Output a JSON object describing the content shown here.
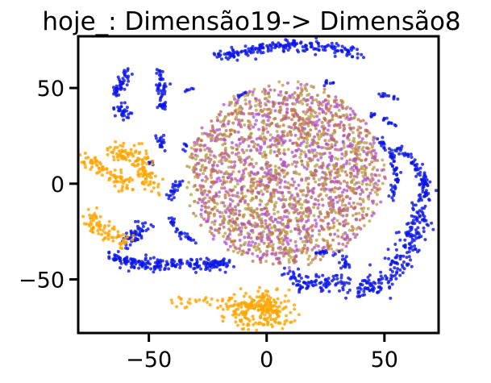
{
  "chart_data": {
    "type": "scatter",
    "title": "hoje_: Dimensão19-> Dimensão8",
    "xlabel": "",
    "ylabel": "",
    "xlim": [
      -80,
      73
    ],
    "ylim": [
      -78,
      77
    ],
    "grid": false,
    "legend": "none",
    "x_ticks": [
      -50,
      0,
      50
    ],
    "y_ticks": [
      -50,
      0,
      50
    ],
    "x_tick_labels": [
      "−50",
      "0",
      "50"
    ],
    "y_tick_labels": [
      "−50",
      "0",
      "50"
    ],
    "colors": {
      "blue": "#0a14e6",
      "orange": "#ffa500",
      "brown": "#c0704a",
      "olive": "#b8a040",
      "magenta": "#b050d0"
    },
    "series": [
      {
        "color": "blue",
        "note_shape": "arcs",
        "arcs": [
          {
            "points": [
              [
                -21,
                67
              ],
              [
                -5,
                70
              ],
              [
                10,
                73
              ],
              [
                25,
                71
              ],
              [
                40,
                68
              ]
            ],
            "spread": 1.6,
            "n": 190
          },
          {
            "points": [
              [
                -59,
                58
              ],
              [
                -62,
                53
              ],
              [
                -64,
                46
              ]
            ],
            "spread": 1.4,
            "n": 45
          },
          {
            "points": [
              [
                -62,
                40
              ],
              [
                -60,
                36
              ]
            ],
            "spread": 1.8,
            "n": 30
          },
          {
            "points": [
              [
                -46,
                59
              ],
              [
                -44,
                53
              ],
              [
                -45,
                45
              ],
              [
                -44,
                38
              ]
            ],
            "spread": 1.0,
            "n": 55
          },
          {
            "points": [
              [
                -45,
                25
              ],
              [
                -44,
                19
              ]
            ],
            "spread": 1.0,
            "n": 18
          },
          {
            "points": [
              [
                -49,
                13
              ],
              [
                -49,
                10
              ]
            ],
            "spread": 0.8,
            "n": 8
          },
          {
            "points": [
              [
                -35,
                20
              ],
              [
                -33,
                18
              ]
            ],
            "spread": 0.8,
            "n": 6
          },
          {
            "points": [
              [
                -52,
                -22
              ],
              [
                -56,
                -27
              ],
              [
                -60,
                -31
              ]
            ],
            "spread": 2.0,
            "n": 55
          },
          {
            "points": [
              [
                -66,
                -38
              ],
              [
                -55,
                -42
              ],
              [
                -40,
                -43
              ],
              [
                -30,
                -42
              ],
              [
                -15,
                -42
              ]
            ],
            "spread": 1.5,
            "n": 200
          },
          {
            "points": [
              [
                -42,
                -17
              ],
              [
                -38,
                -24
              ],
              [
                -31,
                -30
              ]
            ],
            "spread": 0.9,
            "n": 30
          },
          {
            "points": [
              [
                -37,
                2
              ],
              [
                -40,
                -5
              ],
              [
                -41,
                -8
              ]
            ],
            "spread": 0.9,
            "n": 25
          },
          {
            "points": [
              [
                55,
                19
              ],
              [
                62,
                12
              ],
              [
                67,
                2
              ],
              [
                66,
                -8
              ]
            ],
            "spread": 1.1,
            "n": 80
          },
          {
            "points": [
              [
                67,
                -8
              ],
              [
                64,
                -22
              ],
              [
                58,
                -40
              ],
              [
                48,
                -53
              ],
              [
                35,
                -55
              ]
            ],
            "spread": 3.0,
            "n": 220
          },
          {
            "points": [
              [
                32,
                -50
              ],
              [
                18,
                -53
              ],
              [
                10,
                -50
              ],
              [
                8,
                -46
              ]
            ],
            "spread": 2.3,
            "n": 90
          },
          {
            "points": [
              [
                21,
                -36
              ],
              [
                28,
                -35
              ],
              [
                33,
                -40
              ],
              [
                34,
                -44
              ]
            ],
            "spread": 0.8,
            "n": 30
          },
          {
            "points": [
              [
                48,
                23
              ],
              [
                52,
                17
              ],
              [
                55,
                8
              ],
              [
                55,
                0
              ],
              [
                53,
                -7
              ]
            ],
            "spread": 0.9,
            "n": 60
          },
          {
            "points": [
              [
                48,
                47
              ],
              [
                52,
                45
              ],
              [
                56,
                45
              ]
            ],
            "spread": 0.6,
            "n": 12
          },
          {
            "points": [
              [
                50,
                34
              ],
              [
                53,
                32
              ],
              [
                55,
                30
              ]
            ],
            "spread": 0.6,
            "n": 10
          },
          {
            "points": [
              [
                24,
                52
              ],
              [
                27,
                53
              ],
              [
                29,
                53
              ]
            ],
            "spread": 0.6,
            "n": 8
          },
          {
            "points": [
              [
                44,
                37
              ],
              [
                47,
                35
              ]
            ],
            "spread": 0.6,
            "n": 6
          },
          {
            "points": [
              [
                -12,
                45
              ],
              [
                -8,
                48
              ]
            ],
            "spread": 0.6,
            "n": 6
          },
          {
            "points": [
              [
                -35,
                48
              ],
              [
                -32,
                50
              ]
            ],
            "spread": 0.6,
            "n": 6
          }
        ]
      },
      {
        "color": "orange",
        "note_shape": "arcs",
        "arcs": [
          {
            "points": [
              [
                -65,
                17
              ],
              [
                -55,
                15
              ],
              [
                -52,
                8
              ],
              [
                -50,
                0
              ],
              [
                -47,
                -2
              ]
            ],
            "spread": 2.5,
            "n": 130
          },
          {
            "points": [
              [
                -77,
                13
              ],
              [
                -72,
                10
              ],
              [
                -66,
                5
              ],
              [
                -60,
                0
              ],
              [
                -57,
                -3
              ]
            ],
            "spread": 1.8,
            "n": 80
          },
          {
            "points": [
              [
                -76,
                -14
              ],
              [
                -72,
                -22
              ],
              [
                -65,
                -28
              ],
              [
                -58,
                -31
              ]
            ],
            "spread": 2.5,
            "n": 80
          },
          {
            "points": [
              [
                -38,
                -62
              ],
              [
                -20,
                -61
              ],
              [
                -10,
                -64
              ],
              [
                0,
                -63
              ],
              [
                8,
                -70
              ]
            ],
            "spread": 1.5,
            "n": 70
          },
          {
            "points": [
              [
                -15,
                -66
              ],
              [
                -5,
                -67
              ],
              [
                5,
                -67
              ],
              [
                0,
                -59
              ]
            ],
            "spread": 4.5,
            "n": 200
          }
        ]
      },
      {
        "color": "mixed",
        "note_shape": "central-ellipse",
        "center": [
          8,
          5
        ],
        "radius": [
          41,
          47
        ],
        "n": 2200,
        "mix": [
          "brown",
          "olive",
          "magenta"
        ]
      }
    ]
  }
}
